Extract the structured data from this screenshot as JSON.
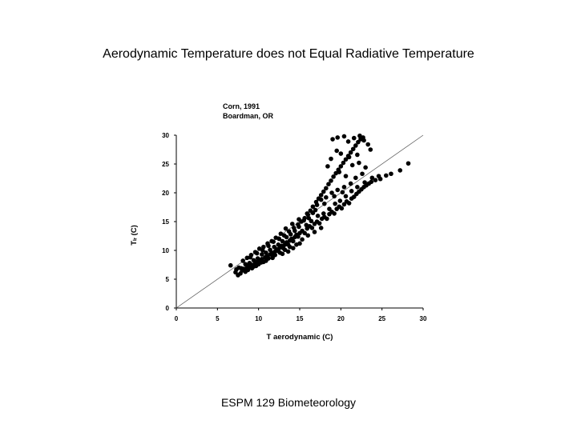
{
  "slide": {
    "title": "Aerodynamic Temperature does not Equal Radiative Temperature",
    "footer": "ESPM 129 Biometeorology"
  },
  "chart_data": {
    "type": "scatter",
    "annotation_lines": [
      "Corn, 1991",
      "Boardman, OR"
    ],
    "xlabel": "T aerodynamic (C)",
    "ylabel": "Tₗᵣ (C)",
    "xlim": [
      0,
      30
    ],
    "ylim": [
      0,
      30
    ],
    "xticks": [
      0,
      5,
      10,
      15,
      20,
      25,
      30
    ],
    "yticks": [
      0,
      5,
      10,
      15,
      20,
      25,
      30
    ],
    "reference_line": {
      "name": "1:1 line",
      "x": [
        0,
        30
      ],
      "y": [
        0,
        30
      ]
    },
    "series": [
      {
        "name": "observations",
        "points": [
          [
            6.6,
            7.4
          ],
          [
            7.2,
            6.2
          ],
          [
            7.5,
            5.7
          ],
          [
            7.8,
            6.0
          ],
          [
            8.0,
            6.5
          ],
          [
            8.2,
            6.8
          ],
          [
            8.4,
            6.3
          ],
          [
            8.6,
            7.0
          ],
          [
            8.8,
            7.3
          ],
          [
            9.0,
            7.0
          ],
          [
            9.2,
            7.5
          ],
          [
            9.4,
            7.2
          ],
          [
            9.6,
            7.8
          ],
          [
            9.8,
            8.0
          ],
          [
            10.0,
            7.6
          ],
          [
            10.2,
            8.2
          ],
          [
            10.4,
            8.5
          ],
          [
            10.6,
            8.0
          ],
          [
            10.8,
            8.8
          ],
          [
            11.0,
            9.0
          ],
          [
            11.2,
            8.6
          ],
          [
            11.4,
            9.3
          ],
          [
            11.6,
            9.6
          ],
          [
            11.8,
            9.1
          ],
          [
            12.0,
            9.8
          ],
          [
            12.2,
            10.2
          ],
          [
            12.4,
            9.9
          ],
          [
            12.6,
            10.5
          ],
          [
            12.8,
            10.8
          ],
          [
            13.0,
            10.4
          ],
          [
            13.2,
            11.0
          ],
          [
            13.4,
            11.4
          ],
          [
            13.6,
            11.0
          ],
          [
            13.8,
            11.7
          ],
          [
            14.0,
            12.0
          ],
          [
            14.2,
            11.6
          ],
          [
            14.4,
            12.3
          ],
          [
            14.6,
            12.7
          ],
          [
            14.8,
            12.4
          ],
          [
            15.0,
            13.0
          ],
          [
            15.3,
            13.4
          ],
          [
            15.6,
            13.0
          ],
          [
            15.9,
            13.8
          ],
          [
            16.2,
            14.2
          ],
          [
            16.5,
            13.9
          ],
          [
            16.8,
            14.6
          ],
          [
            17.1,
            15.0
          ],
          [
            17.4,
            14.7
          ],
          [
            17.7,
            15.5
          ],
          [
            18.0,
            15.8
          ],
          [
            18.3,
            15.5
          ],
          [
            18.6,
            16.3
          ],
          [
            18.9,
            16.7
          ],
          [
            19.2,
            16.4
          ],
          [
            19.5,
            17.2
          ],
          [
            19.8,
            17.6
          ],
          [
            20.1,
            17.3
          ],
          [
            20.4,
            18.0
          ],
          [
            20.7,
            18.5
          ],
          [
            21.0,
            18.2
          ],
          [
            21.3,
            19.0
          ],
          [
            21.6,
            19.3
          ],
          [
            21.9,
            19.8
          ],
          [
            22.2,
            20.2
          ],
          [
            22.5,
            20.6
          ],
          [
            22.8,
            21.0
          ],
          [
            23.1,
            21.3
          ],
          [
            23.4,
            21.6
          ],
          [
            23.7,
            21.9
          ],
          [
            24.2,
            22.2
          ],
          [
            24.8,
            22.4
          ],
          [
            25.5,
            23.0
          ],
          [
            26.1,
            23.3
          ],
          [
            27.2,
            23.9
          ],
          [
            28.2,
            25.1
          ],
          [
            9.0,
            8.8
          ],
          [
            9.8,
            9.5
          ],
          [
            10.5,
            10.0
          ],
          [
            11.2,
            10.8
          ],
          [
            11.8,
            11.5
          ],
          [
            12.5,
            12.0
          ],
          [
            13.1,
            12.6
          ],
          [
            13.7,
            13.3
          ],
          [
            14.3,
            13.9
          ],
          [
            14.8,
            14.5
          ],
          [
            15.2,
            15.0
          ],
          [
            15.6,
            15.6
          ],
          [
            16.0,
            16.2
          ],
          [
            16.3,
            16.9
          ],
          [
            16.6,
            17.6
          ],
          [
            17.0,
            18.4
          ],
          [
            17.3,
            19.0
          ],
          [
            17.6,
            19.6
          ],
          [
            17.9,
            20.2
          ],
          [
            18.2,
            20.8
          ],
          [
            18.5,
            21.5
          ],
          [
            18.8,
            22.1
          ],
          [
            19.1,
            22.8
          ],
          [
            19.4,
            23.4
          ],
          [
            19.7,
            24.0
          ],
          [
            20.0,
            24.6
          ],
          [
            20.3,
            25.2
          ],
          [
            20.6,
            25.8
          ],
          [
            20.9,
            26.4
          ],
          [
            21.2,
            27.0
          ],
          [
            21.5,
            27.6
          ],
          [
            21.8,
            28.2
          ],
          [
            22.1,
            28.8
          ],
          [
            22.4,
            29.3
          ],
          [
            22.7,
            29.6
          ],
          [
            19.0,
            29.3
          ],
          [
            19.6,
            29.6
          ],
          [
            20.4,
            29.8
          ],
          [
            20.9,
            28.9
          ],
          [
            21.6,
            29.5
          ],
          [
            22.3,
            29.9
          ],
          [
            22.8,
            29.1
          ],
          [
            23.3,
            28.4
          ],
          [
            23.6,
            27.5
          ],
          [
            22.0,
            26.6
          ],
          [
            21.0,
            26.2
          ],
          [
            20.0,
            26.8
          ],
          [
            19.5,
            27.3
          ],
          [
            18.8,
            25.9
          ],
          [
            18.4,
            24.6
          ],
          [
            19.8,
            23.6
          ],
          [
            20.6,
            22.9
          ],
          [
            21.4,
            24.8
          ],
          [
            22.2,
            25.2
          ],
          [
            23.0,
            24.4
          ],
          [
            22.6,
            23.3
          ],
          [
            21.8,
            22.6
          ],
          [
            21.2,
            21.6
          ],
          [
            20.4,
            21.0
          ],
          [
            19.6,
            20.5
          ],
          [
            18.9,
            20.0
          ],
          [
            18.2,
            19.2
          ],
          [
            17.6,
            18.8
          ],
          [
            17.1,
            17.9
          ],
          [
            16.6,
            16.5
          ],
          [
            16.1,
            15.6
          ],
          [
            15.5,
            15.2
          ],
          [
            14.9,
            14.1
          ],
          [
            14.4,
            13.4
          ],
          [
            13.9,
            12.8
          ],
          [
            13.4,
            12.3
          ],
          [
            12.9,
            11.6
          ],
          [
            12.4,
            11.0
          ],
          [
            11.9,
            10.6
          ],
          [
            11.4,
            10.1
          ],
          [
            10.9,
            9.6
          ],
          [
            10.4,
            9.3
          ],
          [
            9.9,
            8.6
          ],
          [
            9.4,
            8.3
          ],
          [
            8.9,
            7.8
          ],
          [
            8.4,
            7.6
          ],
          [
            7.9,
            6.9
          ],
          [
            12.0,
            9.2
          ],
          [
            12.6,
            9.6
          ],
          [
            13.2,
            10.1
          ],
          [
            13.8,
            10.6
          ],
          [
            14.6,
            11.0
          ],
          [
            15.3,
            11.9
          ],
          [
            16.0,
            12.6
          ],
          [
            16.8,
            13.2
          ],
          [
            17.6,
            13.9
          ],
          [
            15.8,
            14.4
          ],
          [
            16.4,
            15.1
          ],
          [
            17.2,
            16.0
          ],
          [
            17.9,
            16.4
          ],
          [
            18.6,
            17.2
          ],
          [
            19.3,
            18.1
          ],
          [
            19.9,
            18.6
          ],
          [
            20.6,
            19.4
          ],
          [
            21.3,
            20.3
          ],
          [
            22.0,
            21.0
          ],
          [
            22.9,
            21.8
          ],
          [
            23.8,
            22.6
          ],
          [
            24.6,
            22.9
          ],
          [
            20.2,
            20.1
          ],
          [
            19.2,
            19.4
          ],
          [
            18.0,
            18.1
          ],
          [
            16.9,
            17.0
          ],
          [
            15.9,
            16.4
          ],
          [
            14.9,
            15.4
          ],
          [
            14.1,
            14.6
          ],
          [
            13.3,
            13.8
          ],
          [
            12.7,
            12.9
          ],
          [
            12.1,
            12.2
          ],
          [
            11.6,
            11.6
          ],
          [
            11.1,
            11.2
          ],
          [
            10.6,
            10.6
          ],
          [
            10.1,
            10.3
          ],
          [
            9.6,
            9.7
          ],
          [
            9.1,
            9.2
          ],
          [
            8.6,
            8.7
          ],
          [
            8.1,
            8.2
          ],
          [
            7.6,
            7.0
          ],
          [
            7.3,
            6.7
          ],
          [
            15.0,
            11.2
          ],
          [
            14.2,
            10.4
          ],
          [
            13.6,
            9.8
          ],
          [
            12.9,
            9.4
          ],
          [
            11.7,
            8.7
          ],
          [
            10.9,
            8.2
          ],
          [
            10.3,
            7.9
          ],
          [
            9.7,
            7.3
          ],
          [
            9.2,
            6.9
          ],
          [
            8.7,
            6.6
          ]
        ]
      }
    ]
  }
}
